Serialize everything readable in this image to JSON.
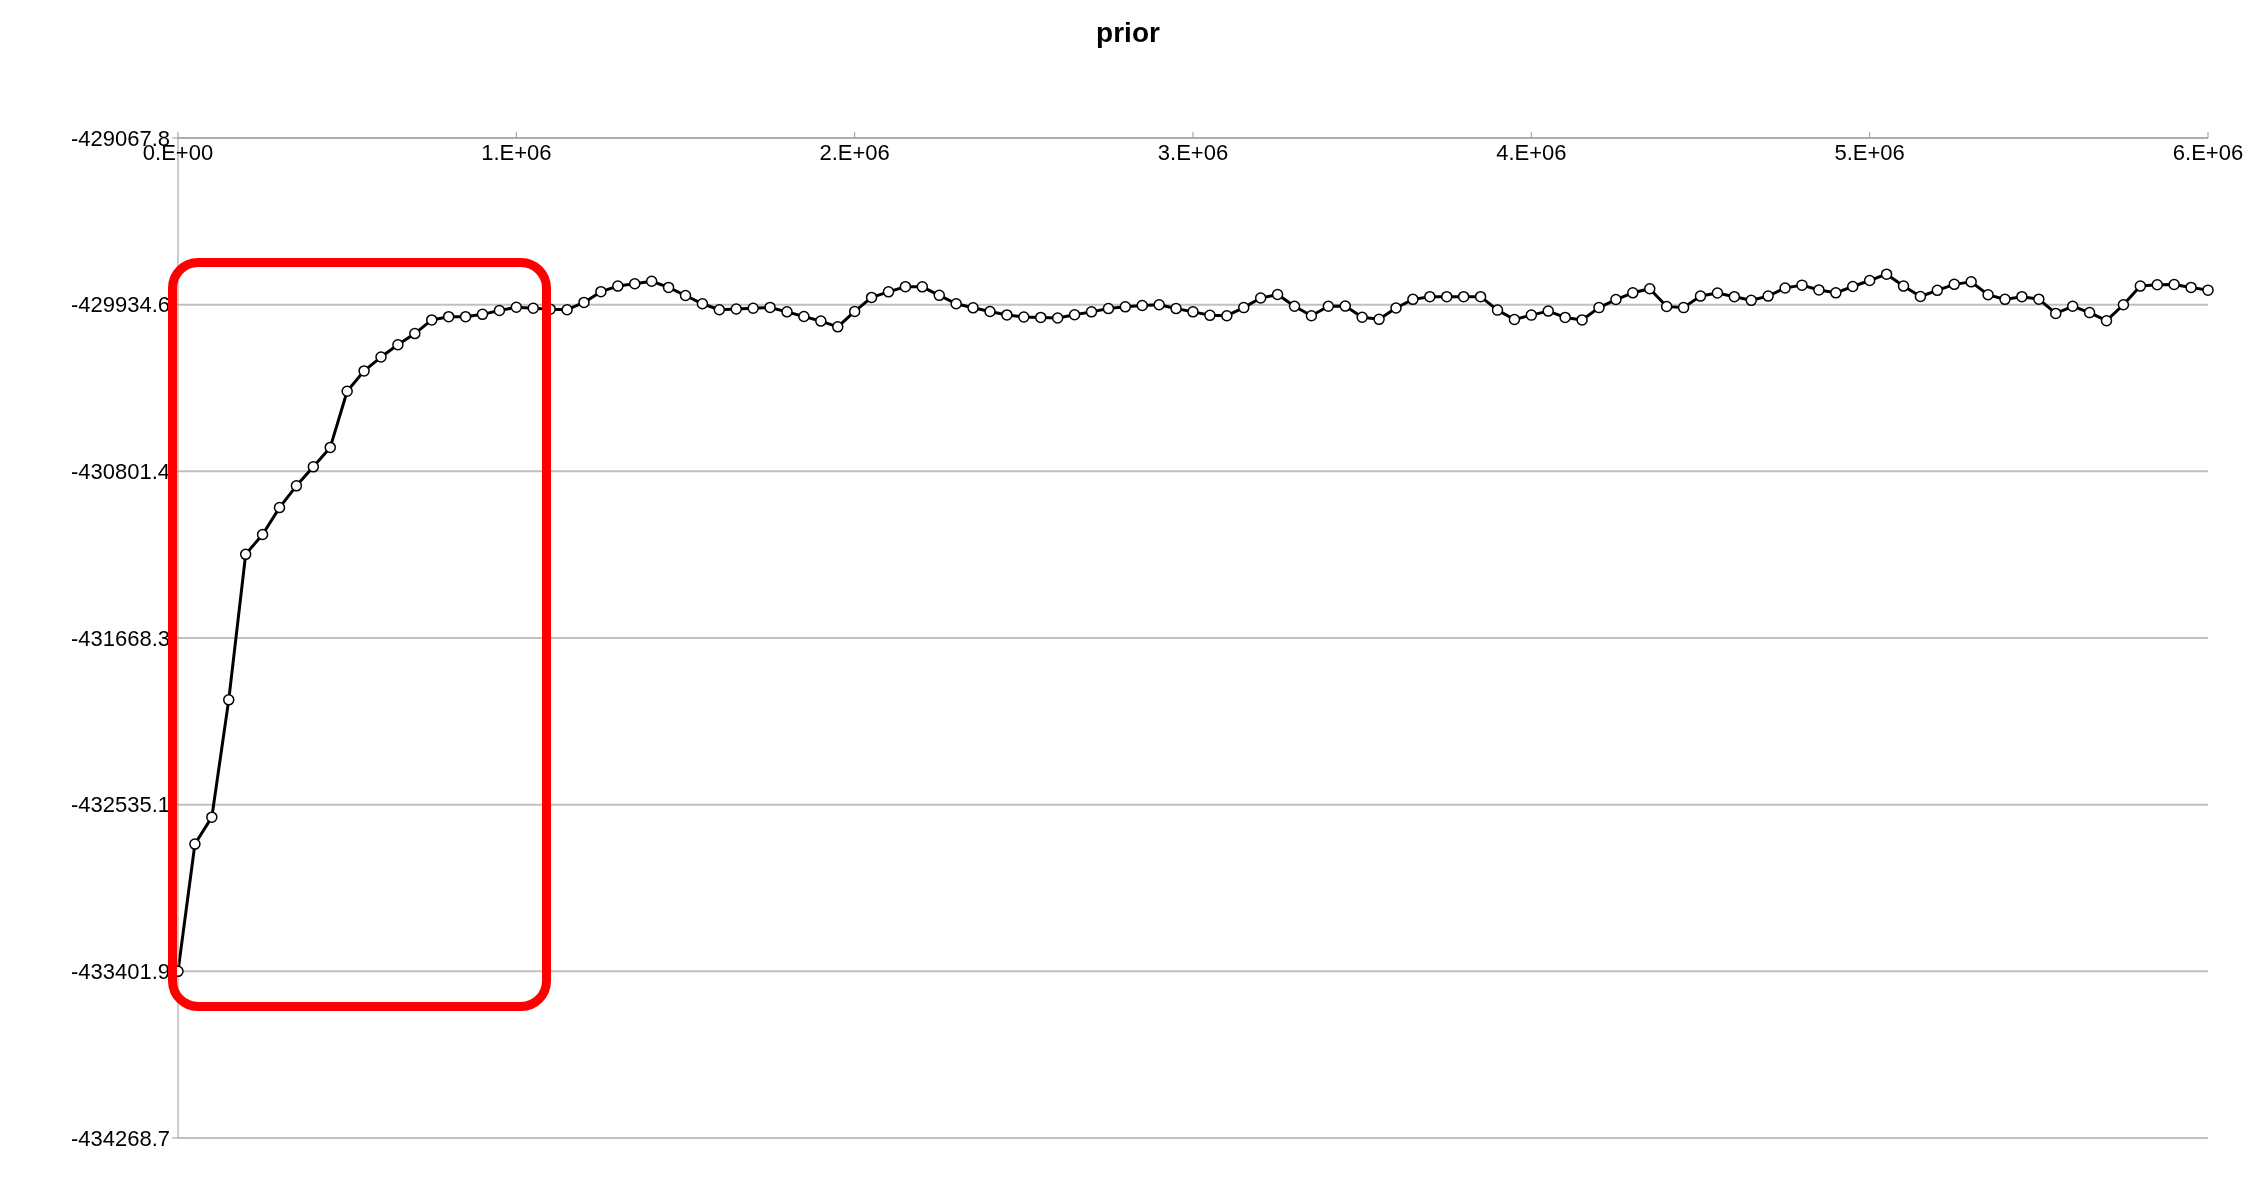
{
  "chart_data": {
    "type": "line",
    "title": "prior",
    "categories": [
      "0.E+00",
      null,
      null,
      null,
      null,
      null,
      null,
      null,
      null,
      null,
      null,
      null,
      null,
      null,
      null,
      null,
      null,
      null,
      null,
      null,
      "1.E+06",
      null,
      null,
      null,
      null,
      null,
      null,
      null,
      null,
      null,
      null,
      null,
      null,
      null,
      null,
      null,
      null,
      null,
      null,
      null,
      "2.E+06",
      null,
      null,
      null,
      null,
      null,
      null,
      null,
      null,
      null,
      null,
      null,
      null,
      null,
      null,
      null,
      null,
      null,
      null,
      null,
      "3.E+06",
      null,
      null,
      null,
      null,
      null,
      null,
      null,
      null,
      null,
      null,
      null,
      null,
      null,
      null,
      null,
      null,
      null,
      null,
      null,
      "4.E+06",
      null,
      null,
      null,
      null,
      null,
      null,
      null,
      null,
      null,
      null,
      null,
      null,
      null,
      null,
      null,
      null,
      null,
      null,
      null,
      "5.E+06",
      null,
      null,
      null,
      null,
      null,
      null,
      null,
      null,
      null,
      null,
      null,
      null,
      null,
      null,
      null,
      null,
      null,
      null,
      null,
      "6.E+06"
    ],
    "series": [
      {
        "color": "#000000",
        "values": [
          -433402,
          -432740,
          -432600,
          -431990,
          -431233,
          -431130,
          -430990,
          -430877,
          -430778,
          -430677,
          -430385,
          -430279,
          -430207,
          -430143,
          -430085,
          -430014,
          -429997,
          -429997,
          -429985,
          -429965,
          -429948,
          -429953,
          -429958,
          -429961,
          -429923,
          -429867,
          -429838,
          -429826,
          -429813,
          -429845,
          -429887,
          -429930,
          -429961,
          -429957,
          -429953,
          -429949,
          -429972,
          -429996,
          -430020,
          -430050,
          -429970,
          -429897,
          -429868,
          -429841,
          -429842,
          -429886,
          -429930,
          -429951,
          -429970,
          -429988,
          -429999,
          -430001,
          -430004,
          -429987,
          -429972,
          -429955,
          -429946,
          -429939,
          -429935,
          -429955,
          -429972,
          -429990,
          -429992,
          -429950,
          -429900,
          -429882,
          -429943,
          -429992,
          -429943,
          -429942,
          -430000,
          -430011,
          -429952,
          -429907,
          -429893,
          -429893,
          -429893,
          -429893,
          -429963,
          -430012,
          -429989,
          -429968,
          -430001,
          -430014,
          -429950,
          -429908,
          -429873,
          -429852,
          -429944,
          -429950,
          -429890,
          -429874,
          -429893,
          -429912,
          -429890,
          -429848,
          -429833,
          -429858,
          -429873,
          -429840,
          -429809,
          -429776,
          -429838,
          -429892,
          -429860,
          -429829,
          -429816,
          -429883,
          -429907,
          -429893,
          -429906,
          -429980,
          -429943,
          -429976,
          -430018,
          -429935,
          -429838,
          -429831,
          -429830,
          -429845,
          -429859
        ]
      }
    ],
    "ylim": [
      -434268.7,
      -429067.8
    ],
    "yticks": [
      -434268.7,
      -433401.9,
      -432535.1,
      -431668.3,
      -430801.4,
      -429934.6,
      -429067.8
    ],
    "grid": "y",
    "marker": "circle",
    "line_style": "solid"
  }
}
